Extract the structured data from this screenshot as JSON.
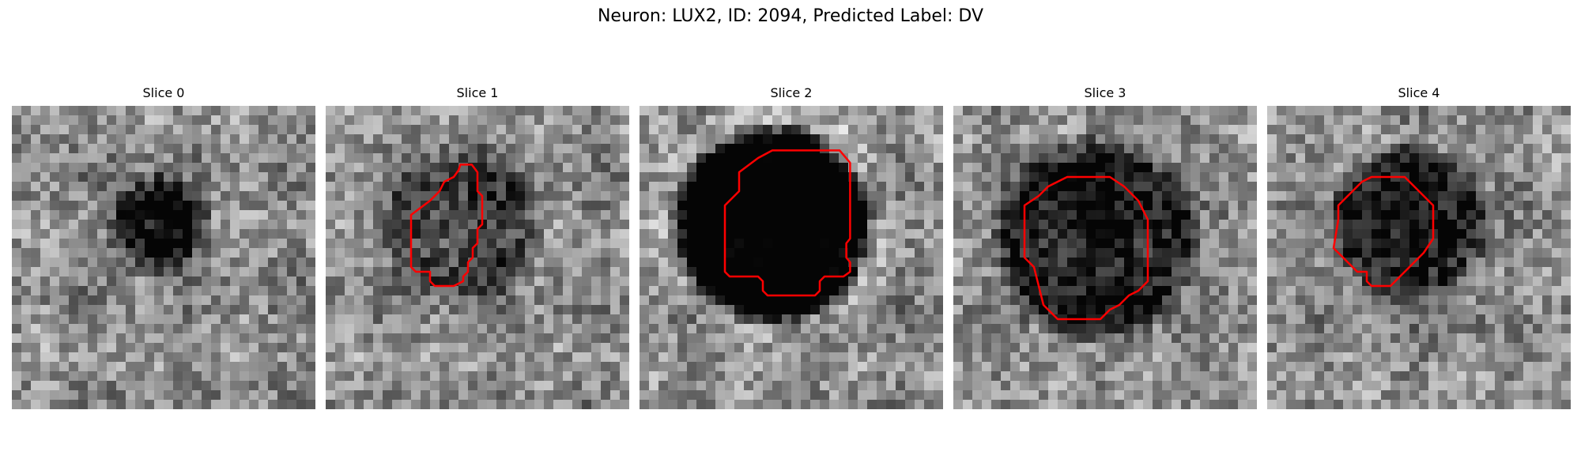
{
  "figure": {
    "title": "Neuron: LUX2, ID: 2094, Predicted Label: DV"
  },
  "panels": [
    {
      "title": "Slice 0",
      "has_contour": false
    },
    {
      "title": "Slice 1",
      "has_contour": true
    },
    {
      "title": "Slice 2",
      "has_contour": true
    },
    {
      "title": "Slice 3",
      "has_contour": true
    },
    {
      "title": "Slice 4",
      "has_contour": true
    }
  ],
  "colors": {
    "contour": "#ff0000",
    "background": "#ffffff"
  }
}
